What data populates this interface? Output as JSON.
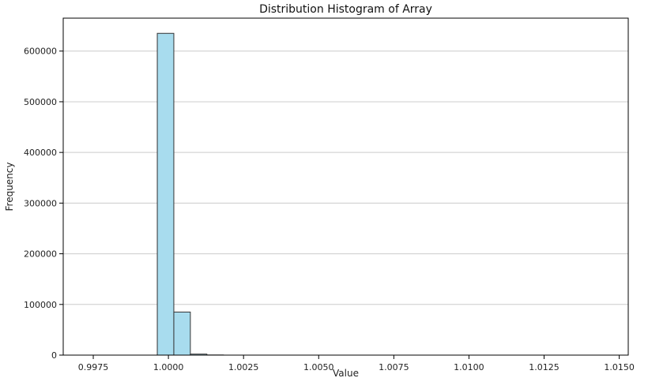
{
  "chart_data": {
    "type": "bar",
    "title": "Distribution Histogram of Array",
    "xlabel": "Value",
    "ylabel": "Frequency",
    "xlim": [
      0.9965,
      1.0153
    ],
    "ylim": [
      0,
      665000
    ],
    "x_ticks": [
      {
        "value": 0.9975,
        "label": "0.9975"
      },
      {
        "value": 1.0,
        "label": "1.0000"
      },
      {
        "value": 1.0025,
        "label": "1.0025"
      },
      {
        "value": 1.005,
        "label": "1.0050"
      },
      {
        "value": 1.0075,
        "label": "1.0075"
      },
      {
        "value": 1.01,
        "label": "1.0100"
      },
      {
        "value": 1.0125,
        "label": "1.0125"
      },
      {
        "value": 1.015,
        "label": "1.0150"
      }
    ],
    "y_ticks": [
      {
        "value": 0,
        "label": "0"
      },
      {
        "value": 100000,
        "label": "100000"
      },
      {
        "value": 200000,
        "label": "200000"
      },
      {
        "value": 300000,
        "label": "300000"
      },
      {
        "value": 400000,
        "label": "400000"
      },
      {
        "value": 500000,
        "label": "500000"
      },
      {
        "value": 600000,
        "label": "600000"
      }
    ],
    "bins": [
      {
        "start": 0.99963,
        "end": 1.00018,
        "count": 635000
      },
      {
        "start": 1.00018,
        "end": 1.00073,
        "count": 85000
      },
      {
        "start": 1.00073,
        "end": 1.00128,
        "count": 2000
      },
      {
        "start": 1.00128,
        "end": 1.00183,
        "count": 300
      },
      {
        "start": 1.00183,
        "end": 1.00238,
        "count": 0
      },
      {
        "start": 1.00238,
        "end": 1.00293,
        "count": 0
      }
    ],
    "grid": {
      "y": true,
      "x": false
    },
    "colors": {
      "bar_fill": "#a8dcee",
      "bar_stroke": "#333333",
      "grid": "#cccccc",
      "axis": "#000000"
    }
  }
}
